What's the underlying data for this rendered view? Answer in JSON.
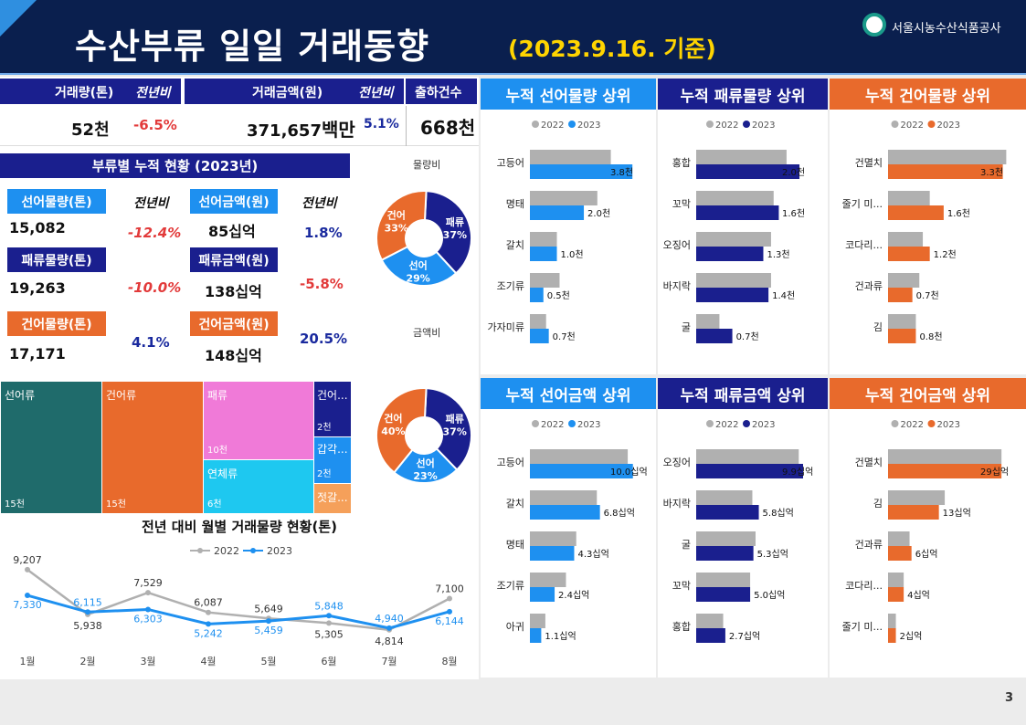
{
  "header": {
    "title": "수산부류 일일 거래동향",
    "subtitle": "(2023.9.16. 기준)",
    "org": "서울시농수산식품공사"
  },
  "summary": {
    "vol_label": "거래량(톤)",
    "vol_yoy_label": "전년비",
    "amt_label": "거래금액(원)",
    "amt_yoy_label": "전년비",
    "ship_label": "출하건수",
    "vol_value": "52",
    "vol_unit": "천",
    "vol_yoy": "-6.5%",
    "amt_value": "371,657",
    "amt_unit": "백만",
    "amt_yoy": "5.1%",
    "ship_value": "668",
    "ship_unit": "천"
  },
  "cumulative": {
    "title": "부류별 누적 현황 (2023년)",
    "yoy_label": "전년비",
    "rows": [
      {
        "vol_label": "선어물량(톤)",
        "vol": "15,082",
        "vol_yoy": "-12.4%",
        "amt_label": "선어금액(원)",
        "amt": "85",
        "amt_unit": "십억",
        "amt_yoy": "1.8%"
      },
      {
        "vol_label": "패류물량(톤)",
        "vol": "19,263",
        "vol_yoy": "-10.0%",
        "amt_label": "패류금액(원)",
        "amt": "138",
        "amt_unit": "십억",
        "amt_yoy": "-5.8%"
      },
      {
        "vol_label": "건어물량(톤)",
        "vol": "17,171",
        "vol_yoy": "4.1%",
        "amt_label": "건어금액(원)",
        "amt": "148",
        "amt_unit": "십억",
        "amt_yoy": "20.5%"
      }
    ]
  },
  "donut_volume": {
    "title": "물량비",
    "slices": [
      {
        "name": "패류",
        "value": 37,
        "label": "37%",
        "color": "#1a1f8e"
      },
      {
        "name": "선어",
        "value": 29,
        "label": "29%",
        "color": "#1e90f0"
      },
      {
        "name": "건어",
        "value": 33,
        "label": "33%",
        "color": "#e86a2c"
      }
    ]
  },
  "donut_amount": {
    "title": "금액비",
    "slices": [
      {
        "name": "패류",
        "value": 37,
        "label": "37%",
        "color": "#1a1f8e"
      },
      {
        "name": "선어",
        "value": 23,
        "label": "23%",
        "color": "#1e90f0"
      },
      {
        "name": "건어",
        "value": 40,
        "label": "40%",
        "color": "#e86a2c"
      }
    ]
  },
  "treemap": {
    "cells": [
      {
        "name": "선어류",
        "value": "15천",
        "color": "#1f6b6b"
      },
      {
        "name": "건어류",
        "value": "15천",
        "color": "#e86a2c"
      },
      {
        "name": "패류",
        "value": "10천",
        "color": "#f07ad8"
      },
      {
        "name": "연체류",
        "value": "6천",
        "color": "#1ec8f0"
      },
      {
        "name": "건어...",
        "value": "2천",
        "color": "#1a1f8e"
      },
      {
        "name": "갑각...",
        "value": "2천",
        "color": "#1e90f0"
      },
      {
        "name": "젓갈...",
        "value": "",
        "color": "#f5a05a"
      }
    ]
  },
  "chart_data": [
    {
      "type": "line",
      "title": "전년 대비 월별 거래물량 현황(톤)",
      "categories": [
        "1월",
        "2월",
        "3월",
        "4월",
        "5월",
        "6월",
        "7월",
        "8월"
      ],
      "series": [
        {
          "name": "2022",
          "values": [
            9207,
            5938,
            7529,
            6087,
            5649,
            5305,
            4814,
            7100
          ],
          "labels": [
            "9,207",
            "5,938",
            "7,529",
            "6,087",
            "5,649",
            "5,305",
            "4,814",
            "7,100"
          ],
          "color": "#b0b0b0"
        },
        {
          "name": "2023",
          "values": [
            7330,
            6115,
            6303,
            5242,
            5459,
            5848,
            4940,
            6144
          ],
          "labels": [
            "7,330",
            "6,115",
            "6,303",
            "5,242",
            "5,459",
            "5,848",
            "4,940",
            "6,144"
          ],
          "color": "#1e90f0"
        }
      ]
    },
    {
      "type": "bar",
      "title": "누적 선어물량 상위",
      "color": "#1e90f0",
      "max": 4.2,
      "legend": [
        "2022",
        "2023"
      ],
      "categories": [
        "고등어",
        "명태",
        "갈치",
        "조기류",
        "가자미류"
      ],
      "v2022": [
        3.0,
        2.5,
        1.0,
        1.1,
        0.6
      ],
      "values": [
        3.8,
        2.0,
        1.0,
        0.5,
        0.7
      ],
      "labels": [
        "3.8천",
        "2.0천",
        "1.0천",
        "0.5천",
        "0.7천"
      ]
    },
    {
      "type": "bar",
      "title": "누적 패류물량 상위",
      "color": "#1a1f8e",
      "max": 2.3,
      "legend": [
        "2022",
        "2023"
      ],
      "categories": [
        "홍합",
        "꼬막",
        "오징어",
        "바지락",
        "굴"
      ],
      "v2022": [
        1.75,
        1.5,
        1.45,
        1.45,
        0.45
      ],
      "values": [
        2.0,
        1.6,
        1.3,
        1.4,
        0.7
      ],
      "labels": [
        "2.0천",
        "1.6천",
        "1.3천",
        "1.4천",
        "0.7천"
      ]
    },
    {
      "type": "bar",
      "title": "누적 건어물량 상위",
      "color": "#e86a2c",
      "max": 3.6,
      "legend": [
        "2022",
        "2023"
      ],
      "categories": [
        "건멸치",
        "줄기 미...",
        "코다리...",
        "건과류",
        "김"
      ],
      "v2022": [
        3.4,
        1.2,
        1.0,
        0.9,
        0.8
      ],
      "values": [
        3.3,
        1.6,
        1.2,
        0.7,
        0.8
      ],
      "labels": [
        "3.3천",
        "1.6천",
        "1.2천",
        "0.7천",
        "0.8천"
      ]
    },
    {
      "type": "bar",
      "title": "누적 선어금액 상위",
      "color": "#1e90f0",
      "max": 11,
      "legend": [
        "2022",
        "2023"
      ],
      "categories": [
        "고등어",
        "갈치",
        "명태",
        "조기류",
        "아귀"
      ],
      "v2022": [
        9.5,
        6.5,
        4.5,
        3.5,
        1.5
      ],
      "values": [
        10.0,
        6.8,
        4.3,
        2.4,
        1.1
      ],
      "labels": [
        "10.0십억",
        "6.8십억",
        "4.3십억",
        "2.4십억",
        "1.1십억"
      ]
    },
    {
      "type": "bar",
      "title": "누적 패류금액 상위",
      "color": "#1a1f8e",
      "max": 11,
      "legend": [
        "2022",
        "2023"
      ],
      "categories": [
        "오징어",
        "바지락",
        "굴",
        "꼬막",
        "홍합"
      ],
      "v2022": [
        9.5,
        5.2,
        5.5,
        5.0,
        2.5
      ],
      "values": [
        9.9,
        5.8,
        5.3,
        5.0,
        2.7
      ],
      "labels": [
        "9.9십억",
        "5.8십억",
        "5.3십억",
        "5.0십억",
        "2.7십억"
      ]
    },
    {
      "type": "bar",
      "title": "누적 건어금액 상위",
      "color": "#e86a2c",
      "max": 32,
      "legend": [
        "2022",
        "2023"
      ],
      "categories": [
        "건멸치",
        "김",
        "건과류",
        "코다리...",
        "줄기 미..."
      ],
      "v2022": [
        29,
        14.5,
        5.5,
        4.0,
        2.0
      ],
      "values": [
        29,
        13,
        6,
        4,
        2
      ],
      "labels": [
        "29십억",
        "13십억",
        "6십억",
        "4십억",
        "2십억"
      ]
    }
  ],
  "page": "3"
}
